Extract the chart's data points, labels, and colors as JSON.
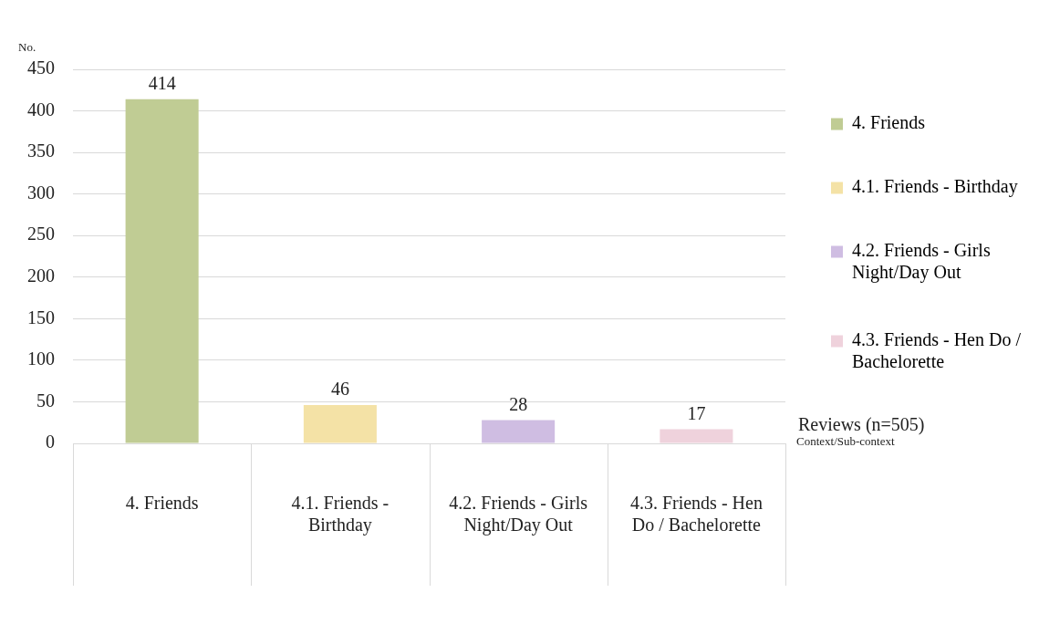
{
  "chart_data": {
    "type": "bar",
    "categories": [
      "4. Friends",
      "4.1. Friends - Birthday",
      "4.2. Friends - Girls Night/Day Out",
      "4.3. Friends - Hen Do / Bachelorette"
    ],
    "series": [
      {
        "name": "4. Friends",
        "color": "#c0cc94",
        "values": [
          414,
          null,
          null,
          null
        ]
      },
      {
        "name": "4.1. Friends - Birthday",
        "color": "#f4e2a6",
        "values": [
          null,
          46,
          null,
          null
        ]
      },
      {
        "name": "4.2. Friends - Girls Night/Day Out",
        "color": "#cfbde2",
        "values": [
          null,
          null,
          28,
          null
        ]
      },
      {
        "name": "4.3. Friends - Hen Do / Bachelorette",
        "color": "#efd2dc",
        "values": [
          null,
          null,
          null,
          17
        ]
      }
    ],
    "ylim": [
      0,
      450
    ],
    "yticks": [
      0,
      50,
      100,
      150,
      200,
      250,
      300,
      350,
      400,
      450
    ],
    "ylabel": "No.",
    "xlabel": "Context/Sub-context",
    "annotations": [
      "Reviews (n=505)"
    ],
    "data_labels": true,
    "grid": "y",
    "legend": "right"
  }
}
